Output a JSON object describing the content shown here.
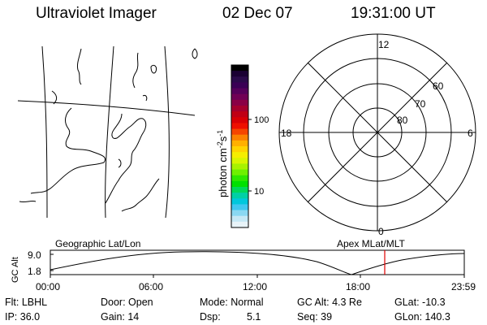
{
  "header": {
    "title": "Ultraviolet Imager",
    "date": "02 Dec 07",
    "time": "19:31:00 UT"
  },
  "colorbar": {
    "label": "photon cm",
    "label_exp1": "-2",
    "label_mid": "s",
    "label_exp2": "-1",
    "tick_labels": [
      "100",
      "10"
    ],
    "colors": [
      "#000000",
      "#1a0033",
      "#2a0a4a",
      "#3a0055",
      "#55005a",
      "#700055",
      "#8a0045",
      "#a5002d",
      "#c00015",
      "#d80005",
      "#ee1000",
      "#f54500",
      "#fb8200",
      "#ffb000",
      "#ffd300",
      "#f5ee00",
      "#d8f500",
      "#a8f200",
      "#6ff000",
      "#2ee800",
      "#00e000",
      "#00d85a",
      "#00d0a5",
      "#00c8dc",
      "#40c8f0",
      "#8ad8f2",
      "#c6e8f5",
      "#e8f3f8"
    ]
  },
  "polar": {
    "mlt_labels": [
      "12",
      "18",
      "6",
      "0"
    ],
    "lat_labels": [
      "60",
      "70",
      "80"
    ]
  },
  "timeline": {
    "left_title": "Geographic Lat/Lon",
    "right_title": "Apex MLat/MLT",
    "axis_label": "GC Alt",
    "y_labels": [
      "9.0",
      "1.8"
    ],
    "x_labels": [
      "00:00",
      "06:00",
      "12:00",
      "18:00",
      "23:59"
    ],
    "accent_color": "#e00000"
  },
  "info": {
    "flt": "Flt: LBHL",
    "door": "Door: Open",
    "mode": "Mode: Normal",
    "gc_alt": "GC Alt: 4.3 Re",
    "glat": "GLat: -10.3",
    "ip": "IP: 36.0",
    "gain": "Gain: 14",
    "dsp_label": "Dsp:",
    "dsp_value": "5.1",
    "seq": "Seq: 39",
    "glon": "GLon: 140.3"
  }
}
